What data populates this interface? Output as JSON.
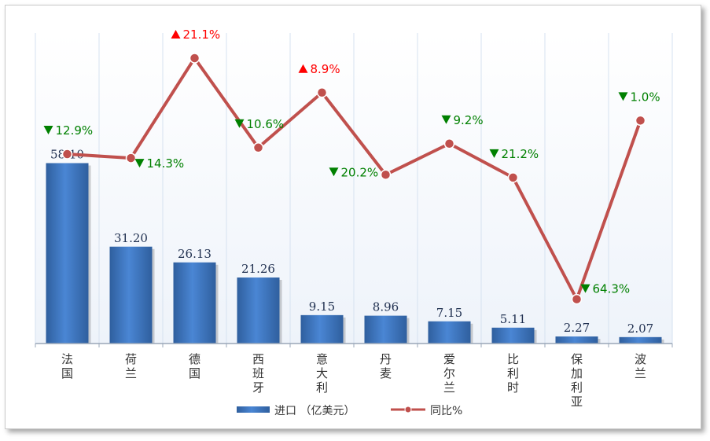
{
  "chart_data": {
    "type": "bar",
    "categories": [
      "法国",
      "荷兰",
      "德国",
      "西班牙",
      "意大利",
      "丹麦",
      "爱尔兰",
      "比利时",
      "保加利亚",
      "波兰"
    ],
    "series": [
      {
        "name": "进口（亿美元）",
        "type": "bar",
        "values": [
          58.1,
          31.2,
          26.13,
          21.26,
          9.15,
          8.96,
          7.15,
          5.11,
          2.27,
          2.07
        ],
        "labels": [
          "58.10",
          "31.20",
          "26.13",
          "21.26",
          "9.15",
          "8.96",
          "7.15",
          "5.11",
          "2.27",
          "2.07"
        ],
        "color": "#3d74c0"
      },
      {
        "name": "同比%",
        "type": "line",
        "values": [
          -12.9,
          -14.3,
          21.1,
          -10.6,
          8.9,
          -20.2,
          -9.2,
          -21.2,
          -64.3,
          -1.0
        ],
        "labels": [
          "12.9%",
          "14.3%",
          "21.1%",
          "10.6%",
          "8.9%",
          "20.2%",
          "9.2%",
          "21.2%",
          "64.3%",
          "1.0%"
        ],
        "directions": [
          "down",
          "down",
          "up",
          "down",
          "up",
          "down",
          "down",
          "down",
          "down",
          "down"
        ],
        "color": "#c0504d"
      }
    ],
    "ylim_bar": [
      0,
      100
    ],
    "ylim_line": [
      -80,
      30
    ],
    "grid": "vertical",
    "legend_position": "bottom",
    "colors": {
      "up": "#ff0000",
      "down": "#008000",
      "line": "#c0504d",
      "bar": "#3d74c0"
    }
  },
  "legend": {
    "bar_label": "进口 （亿美元）",
    "line_label": "同比%"
  }
}
